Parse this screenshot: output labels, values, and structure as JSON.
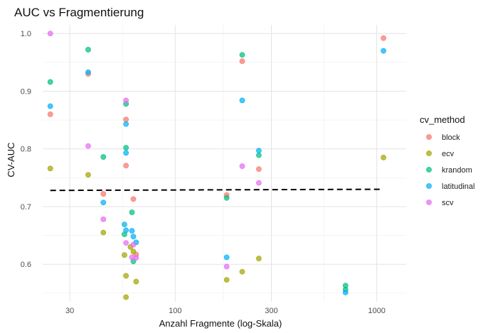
{
  "chart_data": {
    "type": "scatter",
    "title": "AUC vs Fragmentierung",
    "xlabel": "Anzahl Fragmente (log-Skala)",
    "ylabel": "CV-AUC",
    "x_scale": "log10",
    "xlim": [
      22,
      1400
    ],
    "ylim": [
      0.535,
      1.015
    ],
    "x_ticks": [
      30,
      100,
      300,
      1000
    ],
    "x_tick_labels": [
      "30",
      "100",
      "300",
      "1000"
    ],
    "y_ticks": [
      0.6,
      0.7,
      0.8,
      0.9,
      1.0
    ],
    "y_tick_labels": [
      "0.6",
      "0.7",
      "0.8",
      "0.9",
      "1.0"
    ],
    "grid": true,
    "legend_title": "cv_method",
    "legend_position": "right",
    "reference_line": {
      "type": "dashed",
      "x": [
        24,
        1050
      ],
      "y": [
        0.728,
        0.73
      ]
    },
    "series": [
      {
        "name": "block",
        "color": "#F8766D",
        "x": [
          24,
          37,
          44,
          57,
          57,
          62,
          64,
          180,
          215,
          260,
          1080
        ],
        "y": [
          0.86,
          0.93,
          0.722,
          0.851,
          0.771,
          0.713,
          0.617,
          0.72,
          0.952,
          0.765,
          0.992
        ]
      },
      {
        "name": "ecv",
        "color": "#A3A500",
        "x": [
          24,
          37,
          44,
          56,
          57,
          57,
          60,
          62,
          64,
          180,
          215,
          260,
          1080
        ],
        "y": [
          0.766,
          0.755,
          0.655,
          0.616,
          0.58,
          0.543,
          0.63,
          0.622,
          0.57,
          0.573,
          0.587,
          0.61,
          0.785
        ]
      },
      {
        "name": "krandom",
        "color": "#00BF7D",
        "x": [
          24,
          37,
          44,
          56,
          57,
          57,
          61,
          62,
          180,
          215,
          260,
          700,
          700
        ],
        "y": [
          0.916,
          0.972,
          0.786,
          0.652,
          0.878,
          0.802,
          0.69,
          0.605,
          0.715,
          0.963,
          0.789,
          0.563,
          0.556
        ]
      },
      {
        "name": "latitudinal",
        "color": "#00B0F6",
        "x": [
          24,
          37,
          44,
          56,
          57,
          57,
          57,
          61,
          62,
          64,
          180,
          215,
          260,
          700,
          1080
        ],
        "y": [
          0.874,
          0.933,
          0.707,
          0.669,
          0.843,
          0.793,
          0.659,
          0.658,
          0.648,
          0.638,
          0.612,
          0.884,
          0.797,
          0.551,
          0.97
        ]
      },
      {
        "name": "scv",
        "color": "#E76BF3",
        "x": [
          24,
          37,
          44,
          57,
          57,
          61,
          62,
          64,
          180,
          215,
          260
        ],
        "y": [
          1.0,
          0.805,
          0.678,
          0.884,
          0.637,
          0.612,
          0.634,
          0.611,
          0.596,
          0.77,
          0.741
        ]
      }
    ]
  }
}
